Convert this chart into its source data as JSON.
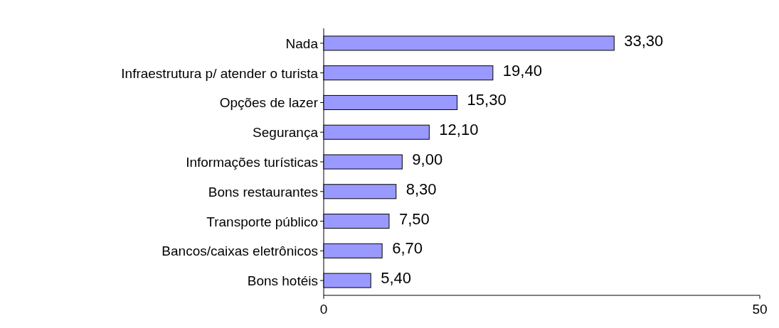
{
  "chart_data": {
    "type": "bar",
    "orientation": "horizontal",
    "categories": [
      "Nada",
      "Infraestrutura p/ atender o turista",
      "Opções de lazer",
      "Segurança",
      "Informações turísticas",
      "Bons restaurantes",
      "Transporte público",
      "Bancos/caixas eletrônicos",
      "Bons hotéis"
    ],
    "values": [
      33.3,
      19.4,
      15.3,
      12.1,
      9.0,
      8.3,
      7.5,
      6.7,
      5.4
    ],
    "value_labels": [
      "33,30",
      "19,40",
      "15,30",
      "12,10",
      "9,00",
      "8,30",
      "7,50",
      "6,70",
      "5,40"
    ],
    "color": "#9999ff",
    "xlim": [
      0,
      50
    ],
    "xticks": [
      0,
      50
    ]
  }
}
